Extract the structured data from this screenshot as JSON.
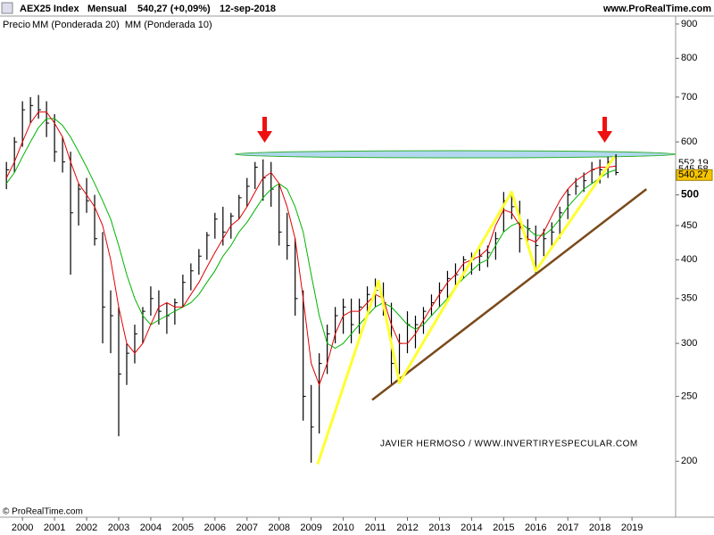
{
  "chart_data": {
    "type": "ohlc",
    "header": [
      "AEX25 Index",
      "Mensual",
      "540,27 (+0,09%)",
      "12-sep-2018"
    ],
    "site": "www.ProRealTime.com",
    "price_label": "Precio",
    "watermark": "JAVIER HERMOSO / WWW.INVERTIRYESPECULAR.COM",
    "copyright": "© ProRealTime.com",
    "log_scale": true,
    "xlim": [
      1999.3,
      2020.36
    ],
    "xticks": [
      2000,
      2001,
      2002,
      2003,
      2004,
      2005,
      2006,
      2007,
      2008,
      2009,
      2010,
      2011,
      2012,
      2013,
      2014,
      2015,
      2016,
      2017,
      2018,
      2019
    ],
    "ylim": [
      165,
      925
    ],
    "yticks": [
      200,
      250,
      300,
      350,
      400,
      450,
      500,
      600,
      700,
      800,
      900
    ],
    "bar_color": "#000000",
    "x": [
      1999.5,
      1999.75,
      2000,
      2000.25,
      2000.5,
      2000.75,
      2001,
      2001.25,
      2001.5,
      2001.75,
      2002,
      2002.25,
      2002.5,
      2002.75,
      2003,
      2003.25,
      2003.5,
      2003.75,
      2004,
      2004.25,
      2004.5,
      2004.75,
      2005,
      2005.25,
      2005.5,
      2005.75,
      2006,
      2006.25,
      2006.5,
      2006.75,
      2007,
      2007.25,
      2007.5,
      2007.75,
      2008,
      2008.25,
      2008.5,
      2008.75,
      2009,
      2009.25,
      2009.5,
      2009.75,
      2010,
      2010.25,
      2010.5,
      2010.75,
      2011,
      2011.25,
      2011.5,
      2011.75,
      2012,
      2012.25,
      2012.5,
      2012.75,
      2013,
      2013.25,
      2013.5,
      2013.75,
      2014,
      2014.25,
      2014.5,
      2014.75,
      2015,
      2015.25,
      2015.5,
      2015.75,
      2016,
      2016.25,
      2016.5,
      2016.75,
      2017,
      2017.25,
      2017.5,
      2017.75,
      2018,
      2018.25,
      2018.5
    ],
    "high": [
      560,
      610,
      690,
      700,
      705,
      690,
      660,
      610,
      580,
      520,
      530,
      500,
      440,
      360,
      340,
      300,
      320,
      340,
      365,
      360,
      345,
      350,
      380,
      395,
      415,
      440,
      470,
      480,
      470,
      500,
      530,
      560,
      565,
      560,
      520,
      470,
      430,
      360,
      260,
      290,
      320,
      340,
      350,
      350,
      350,
      365,
      375,
      370,
      345,
      310,
      335,
      330,
      340,
      355,
      370,
      385,
      395,
      405,
      410,
      415,
      420,
      440,
      505,
      505,
      490,
      460,
      450,
      445,
      455,
      480,
      510,
      530,
      540,
      560,
      565,
      570,
      575
    ],
    "low": [
      510,
      540,
      590,
      640,
      650,
      610,
      560,
      540,
      380,
      450,
      470,
      420,
      300,
      290,
      218,
      260,
      280,
      300,
      330,
      320,
      310,
      320,
      340,
      360,
      380,
      400,
      430,
      420,
      430,
      460,
      480,
      510,
      490,
      480,
      420,
      400,
      330,
      230,
      199,
      220,
      270,
      300,
      310,
      300,
      310,
      330,
      340,
      330,
      260,
      270,
      290,
      295,
      310,
      330,
      340,
      350,
      365,
      375,
      380,
      385,
      390,
      400,
      440,
      460,
      410,
      420,
      380,
      405,
      420,
      430,
      460,
      500,
      505,
      520,
      520,
      530,
      535
    ],
    "close": [
      545,
      600,
      670,
      680,
      670,
      640,
      580,
      560,
      470,
      510,
      490,
      430,
      340,
      330,
      270,
      290,
      310,
      335,
      350,
      335,
      330,
      345,
      370,
      385,
      405,
      435,
      460,
      440,
      465,
      495,
      515,
      550,
      530,
      510,
      440,
      420,
      350,
      250,
      225,
      280,
      310,
      330,
      340,
      320,
      340,
      355,
      360,
      345,
      280,
      300,
      320,
      320,
      335,
      345,
      360,
      375,
      380,
      400,
      400,
      405,
      410,
      430,
      490,
      480,
      430,
      445,
      420,
      430,
      440,
      470,
      500,
      515,
      525,
      545,
      545,
      560,
      540
    ],
    "series": [
      {
        "name": "MM (Ponderada 20)",
        "color": "#00b400",
        "values": [
          520,
          540,
          570,
          600,
          630,
          650,
          650,
          635,
          610,
          580,
          550,
          520,
          490,
          460,
          420,
          380,
          350,
          330,
          320,
          325,
          330,
          335,
          340,
          345,
          355,
          370,
          385,
          405,
          420,
          440,
          455,
          475,
          495,
          510,
          520,
          510,
          480,
          440,
          380,
          330,
          300,
          295,
          300,
          310,
          320,
          330,
          340,
          345,
          340,
          330,
          320,
          315,
          320,
          330,
          340,
          350,
          365,
          375,
          385,
          395,
          400,
          420,
          440,
          450,
          455,
          445,
          435,
          435,
          445,
          460,
          480,
          495,
          510,
          520,
          530,
          540,
          545
        ]
      },
      {
        "name": "MM (Ponderada 10)",
        "color": "#e00000",
        "values": [
          530,
          560,
          600,
          640,
          665,
          665,
          640,
          610,
          560,
          520,
          500,
          480,
          450,
          400,
          340,
          300,
          290,
          300,
          320,
          340,
          345,
          340,
          340,
          355,
          370,
          390,
          410,
          430,
          450,
          460,
          480,
          505,
          530,
          540,
          520,
          480,
          430,
          350,
          280,
          260,
          280,
          310,
          330,
          335,
          335,
          345,
          355,
          350,
          320,
          300,
          300,
          310,
          325,
          340,
          355,
          370,
          380,
          395,
          400,
          405,
          415,
          450,
          475,
          470,
          450,
          430,
          425,
          440,
          465,
          490,
          510,
          525,
          535,
          545,
          550,
          550,
          552
        ]
      }
    ],
    "last_labels": [
      {
        "value": 552.19,
        "label": "552,19",
        "color": "#e00000"
      },
      {
        "value": 545.58,
        "label": "545,58",
        "color": "#00b400"
      },
      {
        "value": 540.27,
        "label": "540,27",
        "color": "#f5c400"
      }
    ],
    "zigzag": {
      "color": "#ffff30",
      "x": [
        2009.2,
        2011.1,
        2011.75,
        2015.25,
        2016.0,
        2018.45
      ],
      "y": [
        198,
        372,
        262,
        505,
        385,
        570
      ]
    },
    "trendline": {
      "color": "#7a4a1a",
      "x": [
        2010.9,
        2019.45
      ],
      "y": [
        247,
        510
      ]
    },
    "resistance": {
      "value": 575,
      "x": [
        2006.62,
        2020.36
      ],
      "color": "#90c8e8"
    },
    "arrows_x": [
      2007.55,
      2018.15
    ]
  }
}
